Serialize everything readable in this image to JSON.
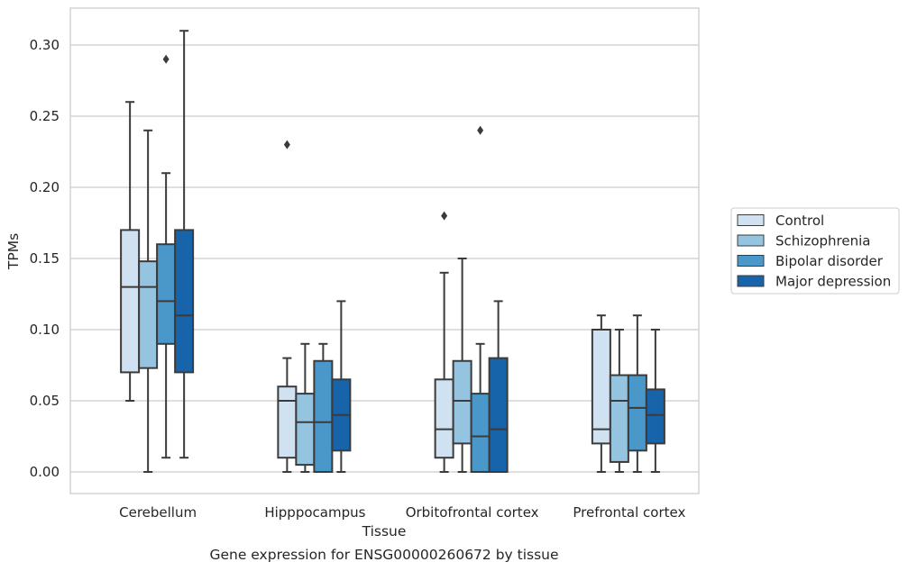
{
  "chart_data": {
    "type": "boxplot",
    "title": "Gene expression for ENSG00000260672 by tissue",
    "xlabel": "Tissue",
    "ylabel": "TPMs",
    "ylim": [
      -0.015,
      0.325
    ],
    "yticks": [
      0.0,
      0.05,
      0.1,
      0.15,
      0.2,
      0.25,
      0.3
    ],
    "ytick_labels": [
      "0.00",
      "0.05",
      "0.10",
      "0.15",
      "0.20",
      "0.25",
      "0.30"
    ],
    "grid": "horizontal",
    "legend_position": "right",
    "categories": [
      "Cerebellum",
      "Hipppocampus",
      "Orbitofrontal cortex",
      "Prefrontal cortex"
    ],
    "series": [
      {
        "name": "Control",
        "color": "#d0e1f2",
        "boxes": [
          {
            "whislo": 0.05,
            "q1": 0.07,
            "med": 0.13,
            "q3": 0.17,
            "whishi": 0.26,
            "fliers": []
          },
          {
            "whislo": 0.0,
            "q1": 0.01,
            "med": 0.05,
            "q3": 0.06,
            "whishi": 0.08,
            "fliers": [
              0.23
            ]
          },
          {
            "whislo": 0.0,
            "q1": 0.01,
            "med": 0.03,
            "q3": 0.065,
            "whishi": 0.14,
            "fliers": [
              0.18
            ]
          },
          {
            "whislo": 0.0,
            "q1": 0.02,
            "med": 0.03,
            "q3": 0.1,
            "whishi": 0.11,
            "fliers": []
          }
        ]
      },
      {
        "name": "Schizophrenia",
        "color": "#94c4df",
        "boxes": [
          {
            "whislo": 0.0,
            "q1": 0.073,
            "med": 0.13,
            "q3": 0.148,
            "whishi": 0.24,
            "fliers": []
          },
          {
            "whislo": 0.0,
            "q1": 0.005,
            "med": 0.035,
            "q3": 0.055,
            "whishi": 0.09,
            "fliers": []
          },
          {
            "whislo": 0.0,
            "q1": 0.02,
            "med": 0.05,
            "q3": 0.078,
            "whishi": 0.15,
            "fliers": []
          },
          {
            "whislo": 0.0,
            "q1": 0.007,
            "med": 0.05,
            "q3": 0.068,
            "whishi": 0.1,
            "fliers": []
          }
        ]
      },
      {
        "name": "Bipolar disorder",
        "color": "#4a98c9",
        "boxes": [
          {
            "whislo": 0.01,
            "q1": 0.09,
            "med": 0.12,
            "q3": 0.16,
            "whishi": 0.21,
            "fliers": [
              0.29
            ]
          },
          {
            "whislo": 0.0,
            "q1": 0.0,
            "med": 0.035,
            "q3": 0.078,
            "whishi": 0.09,
            "fliers": []
          },
          {
            "whislo": 0.0,
            "q1": 0.0,
            "med": 0.025,
            "q3": 0.055,
            "whishi": 0.09,
            "fliers": [
              0.24
            ]
          },
          {
            "whislo": 0.0,
            "q1": 0.015,
            "med": 0.045,
            "q3": 0.068,
            "whishi": 0.11,
            "fliers": []
          }
        ]
      },
      {
        "name": "Major depression",
        "color": "#1764ab",
        "boxes": [
          {
            "whislo": 0.01,
            "q1": 0.07,
            "med": 0.11,
            "q3": 0.17,
            "whishi": 0.31,
            "fliers": []
          },
          {
            "whislo": 0.0,
            "q1": 0.015,
            "med": 0.04,
            "q3": 0.065,
            "whishi": 0.12,
            "fliers": []
          },
          {
            "whislo": 0.0,
            "q1": 0.0,
            "med": 0.03,
            "q3": 0.08,
            "whishi": 0.12,
            "fliers": []
          },
          {
            "whislo": 0.0,
            "q1": 0.02,
            "med": 0.04,
            "q3": 0.058,
            "whishi": 0.1,
            "fliers": []
          }
        ]
      }
    ]
  }
}
